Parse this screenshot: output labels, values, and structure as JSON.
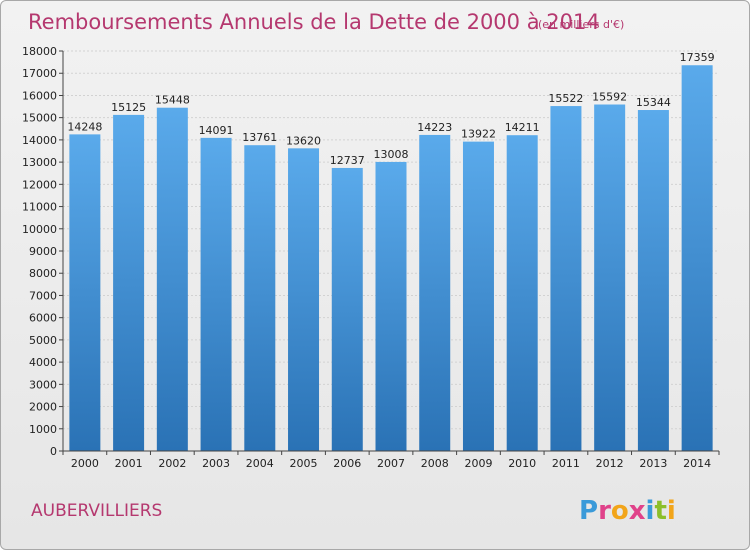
{
  "chart_data": {
    "type": "bar",
    "title": "Remboursements Annuels de la Dette de 2000 à 2014",
    "unit_note": "(en milliers d'€)",
    "categories": [
      "2000",
      "2001",
      "2002",
      "2003",
      "2004",
      "2005",
      "2006",
      "2007",
      "2008",
      "2009",
      "2010",
      "2011",
      "2012",
      "2013",
      "2014"
    ],
    "values": [
      14248,
      15125,
      15448,
      14091,
      13761,
      13620,
      12737,
      13008,
      14223,
      13922,
      14211,
      15522,
      15592,
      15344,
      17359
    ],
    "ylim": [
      0,
      18000
    ],
    "ytick_step": 1000,
    "grid": true,
    "bar_color": "#3d8fd6"
  },
  "footer": {
    "city": "AUBERVILLIERS",
    "logo": {
      "letters": [
        "P",
        "r",
        "o",
        "x",
        "i",
        "t",
        "i"
      ],
      "colors": [
        "#3a9ad9",
        "#e0428a",
        "#f2a51a",
        "#e0428a",
        "#3a9ad9",
        "#8cbf2a",
        "#f2a51a"
      ]
    }
  }
}
